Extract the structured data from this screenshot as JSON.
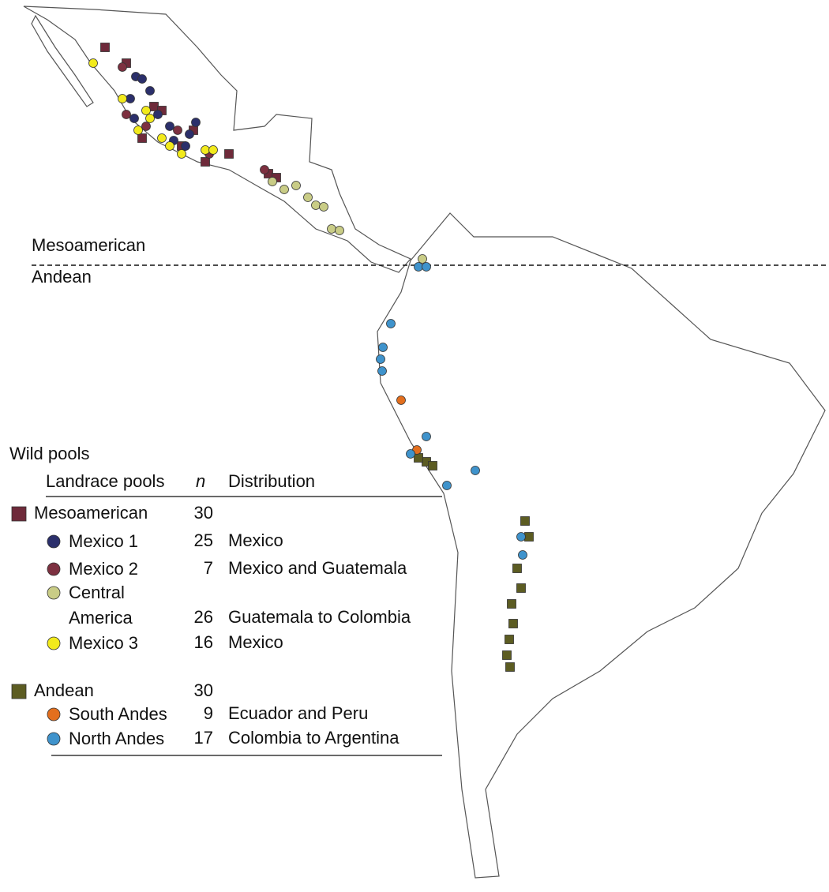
{
  "divider": {
    "north": "Mesoamerican",
    "south": "Andean"
  },
  "legend": {
    "title": "Wild pools",
    "columns": [
      "Landrace pools",
      "n",
      "Distribution"
    ],
    "groups": [
      {
        "pool": "Mesoamerican",
        "n": 30,
        "color": "#6e2a3a",
        "subpools": [
          {
            "pool": "Mexico 1",
            "n": 25,
            "distribution": "Mexico",
            "color": "#2b2f6b"
          },
          {
            "pool": "Mexico 2",
            "n": 7,
            "distribution": "Mexico and Guatemala",
            "color": "#7d3040"
          },
          {
            "pool": "Central America",
            "n": 26,
            "distribution": "Guatemala to Colombia",
            "color": "#c9cc86"
          },
          {
            "pool": "Mexico 3",
            "n": 16,
            "distribution": "Mexico",
            "color": "#f2ea1c"
          }
        ]
      },
      {
        "pool": "Andean",
        "n": 30,
        "color": "#5c5c22",
        "subpools": [
          {
            "pool": "South Andes",
            "n": 9,
            "distribution": "Ecuador and Peru",
            "color": "#e36f1e"
          },
          {
            "pool": "North Andes",
            "n": 17,
            "distribution": "Colombia to Argentina",
            "color": "#3f93cc"
          }
        ]
      }
    ]
  }
}
